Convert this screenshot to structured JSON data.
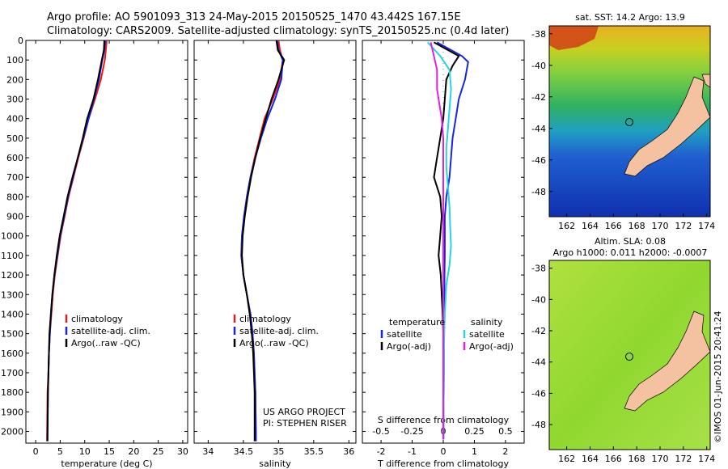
{
  "figure": {
    "title_line1": "Argo profile: AO 5901093_313 24-May-2015 20150525_1470 43.442S 167.15E",
    "title_line2": "Climatology: CARS2009. Satellite-adjusted climatology: synTS_20150525.nc (0.4d later)",
    "credit": "US ARGO PROJECT",
    "pi": "PI: STEPHEN RISER",
    "stamp": "©IMOS 01-Jun-2015 20:41:24"
  },
  "colors": {
    "climatology": "#e8191c",
    "satellite": "#1526e6",
    "argo": "#000000",
    "sal_satellite": "#22d6e0",
    "sal_argo": "#e51ee0",
    "land": "#f4c2a0"
  },
  "depth_ticks": [
    0,
    100,
    200,
    300,
    400,
    500,
    600,
    700,
    800,
    900,
    1000,
    1100,
    1200,
    1300,
    1400,
    1500,
    1600,
    1700,
    1800,
    1900,
    2000
  ],
  "chart_data": [
    {
      "type": "line",
      "xlabel": "temperature (deg C)",
      "xlim": [
        -2,
        31
      ],
      "xticks": [
        0,
        5,
        10,
        15,
        20,
        25,
        30
      ],
      "ylim": [
        0,
        2060
      ],
      "legend": [
        "climatology",
        "satellite-adj. clim.",
        "Argo(..raw -QC)"
      ],
      "series": [
        {
          "name": "climatology",
          "color_key": "climatology",
          "x": [
            14.5,
            14.3,
            14.1,
            13.3,
            12.1,
            10.8,
            9.8,
            8.7,
            7.7,
            6.7,
            5.9,
            5.1,
            4.5,
            3.9,
            3.5,
            3.2,
            2.9,
            2.7,
            2.6,
            2.4,
            2.3
          ],
          "y": [
            0,
            50,
            100,
            200,
            300,
            400,
            500,
            600,
            700,
            800,
            900,
            1000,
            1100,
            1200,
            1300,
            1400,
            1500,
            1600,
            1700,
            1800,
            2050
          ]
        },
        {
          "name": "satellite-adj. clim.",
          "color_key": "satellite",
          "x": [
            14.2,
            14.0,
            13.6,
            12.9,
            11.9,
            10.8,
            9.7,
            8.6,
            7.6,
            6.6,
            5.8,
            5.0,
            4.4,
            3.8,
            3.4,
            3.1,
            2.9,
            2.7,
            2.6,
            2.5,
            2.4
          ],
          "y": [
            0,
            50,
            100,
            200,
            300,
            400,
            500,
            600,
            700,
            800,
            900,
            1000,
            1100,
            1200,
            1300,
            1400,
            1500,
            1600,
            1700,
            1800,
            2050
          ]
        },
        {
          "name": "Argo(..raw -QC)",
          "color_key": "argo",
          "x": [
            14.0,
            13.9,
            13.5,
            12.7,
            11.8,
            10.5,
            9.6,
            8.6,
            7.5,
            6.5,
            5.7,
            4.9,
            4.3,
            3.8,
            3.4,
            3.1,
            2.8,
            2.7,
            2.6,
            2.5,
            2.4
          ],
          "y": [
            0,
            50,
            100,
            200,
            300,
            400,
            500,
            600,
            700,
            800,
            900,
            1000,
            1100,
            1200,
            1300,
            1400,
            1500,
            1600,
            1700,
            1800,
            2050
          ]
        }
      ]
    },
    {
      "type": "line",
      "xlabel": "salinity",
      "xlim": [
        33.8,
        36.1
      ],
      "xticks": [
        34,
        34.5,
        35,
        35.5,
        36
      ],
      "xtick_labels": [
        "34",
        "34.5",
        "35",
        "35.5",
        "36"
      ],
      "ylim": [
        0,
        2060
      ],
      "legend": [
        "climatology",
        "satellite-adj. clim.",
        "Argo(..raw -QC)"
      ],
      "series": [
        {
          "name": "climatology",
          "color_key": "climatology",
          "x": [
            35.0,
            35.02,
            35.06,
            35.02,
            34.92,
            34.8,
            34.73,
            34.66,
            34.6,
            34.55,
            34.51,
            34.48,
            34.47,
            34.5,
            34.55,
            34.6,
            34.63,
            34.65,
            34.66,
            34.67,
            34.68
          ],
          "y": [
            0,
            50,
            100,
            200,
            300,
            400,
            500,
            600,
            700,
            800,
            900,
            1000,
            1100,
            1200,
            1300,
            1400,
            1500,
            1600,
            1700,
            1800,
            2050
          ]
        },
        {
          "name": "satellite-adj. clim.",
          "color_key": "satellite",
          "x": [
            34.98,
            35.0,
            35.06,
            35.04,
            34.95,
            34.84,
            34.75,
            34.67,
            34.6,
            34.55,
            34.51,
            34.48,
            34.47,
            34.5,
            34.55,
            34.6,
            34.63,
            34.65,
            34.66,
            34.67,
            34.68
          ],
          "y": [
            0,
            50,
            100,
            200,
            300,
            400,
            500,
            600,
            700,
            800,
            900,
            1000,
            1100,
            1200,
            1300,
            1400,
            1500,
            1600,
            1700,
            1800,
            2050
          ]
        },
        {
          "name": "Argo(..raw -QC)",
          "color_key": "argo",
          "x": [
            34.97,
            34.99,
            35.08,
            35.0,
            34.9,
            34.82,
            34.74,
            34.67,
            34.61,
            34.56,
            34.52,
            34.49,
            34.48,
            34.5,
            34.55,
            34.59,
            34.62,
            34.64,
            34.65,
            34.66,
            34.66
          ],
          "y": [
            0,
            50,
            100,
            200,
            300,
            400,
            500,
            600,
            700,
            800,
            900,
            1000,
            1100,
            1200,
            1300,
            1400,
            1500,
            1600,
            1700,
            1800,
            2050
          ]
        }
      ]
    },
    {
      "type": "line",
      "xlabel": "T difference from climatology",
      "xlabel_top": "S difference from climatology",
      "xlim": [
        -2.6,
        2.6
      ],
      "xticks": [
        -2,
        -1,
        0,
        1,
        2
      ],
      "xticks_top": [
        -0.5,
        -0.25,
        0,
        0.25,
        0.5
      ],
      "xtick_labels_top": [
        "-0.5",
        "-0.25",
        "0",
        "0.25",
        "0.5"
      ],
      "ylim": [
        0,
        2060
      ],
      "legend": [
        "temperature",
        "satellite",
        "Argo(-adj)",
        "salinity",
        "satellite",
        "Argo(-adj)"
      ],
      "series": [
        {
          "name": "satellite",
          "color_key": "satellite",
          "x": [
            -0.2,
            0.6,
            0.8,
            0.7,
            0.5,
            0.4,
            0.3,
            0.25,
            0.2,
            0.1,
            0.05,
            0.05,
            0.05,
            0.04,
            0.03,
            0.02,
            0.02,
            0.02,
            0.01,
            0.01
          ],
          "y": [
            10,
            80,
            110,
            200,
            300,
            400,
            500,
            600,
            700,
            800,
            900,
            1000,
            1100,
            1200,
            1400,
            1500,
            1600,
            1700,
            1900,
            2040
          ]
        },
        {
          "name": "Argo(-adj)",
          "color_key": "argo",
          "x": [
            -0.3,
            0.5,
            0.3,
            0.1,
            0.05,
            0.0,
            -0.1,
            -0.2,
            -0.3,
            -0.1,
            -0.05,
            -0.1,
            -0.15,
            -0.08,
            -0.02,
            0.0,
            0.0,
            0.0,
            0.0,
            0.0
          ],
          "y": [
            10,
            80,
            130,
            200,
            300,
            400,
            500,
            600,
            700,
            800,
            900,
            1000,
            1100,
            1200,
            1400,
            1500,
            1600,
            1700,
            1900,
            2040
          ]
        },
        {
          "name": "satellite",
          "color_key": "sal_satellite",
          "x": [
            -0.5,
            -0.1,
            0.2,
            0.25,
            0.2,
            0.15,
            0.1,
            0.1,
            0.15,
            0.2,
            0.22,
            0.25,
            0.2,
            0.1,
            0.05,
            0.03,
            0.02,
            0.02,
            0.01,
            0.01
          ],
          "y": [
            10,
            80,
            150,
            250,
            350,
            450,
            550,
            650,
            750,
            850,
            950,
            1050,
            1150,
            1250,
            1400,
            1500,
            1600,
            1700,
            1900,
            2040
          ]
        },
        {
          "name": "Argo(-adj)",
          "color_key": "sal_argo",
          "x": [
            -0.4,
            -0.2,
            -0.2,
            -0.15,
            -0.05,
            0.0,
            0.0,
            0.0,
            0.0,
            0.0,
            0.0,
            0.0,
            0.0,
            0.0
          ],
          "y": [
            10,
            150,
            250,
            300,
            400,
            500,
            600,
            700,
            900,
            1100,
            1300,
            1500,
            1700,
            2040
          ]
        }
      ]
    },
    {
      "type": "heatmap",
      "title": "sat. SST: 14.2 Argo: 13.9",
      "xticks": [
        162,
        164,
        166,
        168,
        170,
        172,
        174
      ],
      "yticks": [
        -38,
        -40,
        -42,
        -44,
        -46,
        -48
      ],
      "xlim": [
        160.5,
        174.3
      ],
      "ylim": [
        -49.6,
        -37.5
      ],
      "marker": {
        "lon": 167.15,
        "lat": -43.44
      }
    },
    {
      "type": "heatmap",
      "title": "Altim. SLA: 0.08",
      "subtitle": "Argo h1000: 0.011 h2000: -0.0007",
      "xticks": [
        162,
        164,
        166,
        168,
        170,
        172,
        174
      ],
      "yticks": [
        -38,
        -40,
        -42,
        -44,
        -46,
        -48
      ],
      "xlim": [
        160.5,
        174.3
      ],
      "ylim": [
        -49.6,
        -37.5
      ],
      "marker": {
        "lon": 167.15,
        "lat": -43.44
      }
    }
  ]
}
